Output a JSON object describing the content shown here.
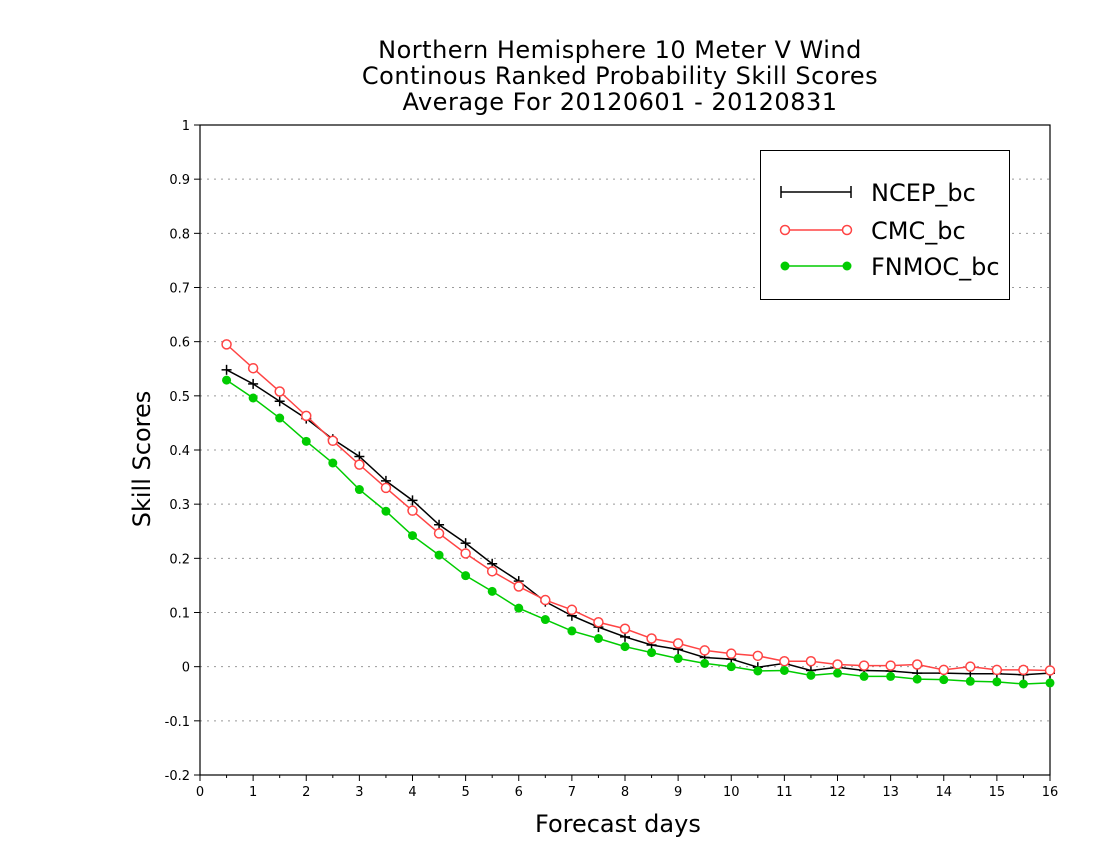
{
  "chart_data": {
    "type": "line",
    "title_lines": [
      "Northern Hemisphere 10 Meter V Wind",
      "Continous Ranked Probability Skill Scores",
      "Average For 20120601 - 20120831"
    ],
    "xlabel": "Forecast days",
    "ylabel": "Skill Scores",
    "xlim": [
      0,
      16
    ],
    "ylim": [
      -0.2,
      1
    ],
    "xticks": [
      "0",
      "1",
      "2",
      "3",
      "4",
      "5",
      "6",
      "7",
      "8",
      "9",
      "10",
      "11",
      "12",
      "13",
      "14",
      "15",
      "16"
    ],
    "yticks": [
      "-0.2",
      "-0.1",
      "0",
      "0.1",
      "0.2",
      "0.3",
      "0.4",
      "0.5",
      "0.6",
      "0.7",
      "0.8",
      "0.9",
      "1"
    ],
    "grid": "horizontal dotted",
    "legend_position": "top-right",
    "x": [
      0.5,
      1,
      1.5,
      2,
      2.5,
      3,
      3.5,
      4,
      4.5,
      5,
      5.5,
      6,
      6.5,
      7,
      7.5,
      8,
      8.5,
      9,
      9.5,
      10,
      10.5,
      11,
      11.5,
      12,
      12.5,
      13,
      13.5,
      14,
      14.5,
      15,
      15.5,
      16
    ],
    "series": [
      {
        "name": "NCEP_bc",
        "color": "#000000",
        "marker": "plus",
        "values": [
          0.548,
          0.522,
          0.49,
          0.458,
          0.42,
          0.388,
          0.343,
          0.307,
          0.262,
          0.228,
          0.19,
          0.158,
          0.12,
          0.094,
          0.073,
          0.055,
          0.04,
          0.032,
          0.017,
          0.014,
          -0.001,
          0.006,
          -0.007,
          -0.001,
          -0.007,
          -0.008,
          -0.012,
          -0.012,
          -0.013,
          -0.013,
          -0.015,
          -0.012
        ]
      },
      {
        "name": "CMC_bc",
        "color": "#ff4444",
        "marker": "open-circle",
        "values": [
          0.595,
          0.551,
          0.508,
          0.463,
          0.417,
          0.373,
          0.33,
          0.288,
          0.246,
          0.209,
          0.176,
          0.148,
          0.123,
          0.105,
          0.082,
          0.07,
          0.052,
          0.043,
          0.03,
          0.024,
          0.02,
          0.01,
          0.01,
          0.004,
          0.002,
          0.002,
          0.004,
          -0.006,
          0,
          -0.006,
          -0.006,
          -0.007
        ]
      },
      {
        "name": "FNMOC_bc",
        "color": "#00cc00",
        "marker": "filled-circle",
        "values": [
          0.529,
          0.496,
          0.459,
          0.416,
          0.376,
          0.327,
          0.287,
          0.242,
          0.206,
          0.168,
          0.139,
          0.108,
          0.087,
          0.066,
          0.052,
          0.037,
          0.026,
          0.015,
          0.006,
          0,
          -0.008,
          -0.007,
          -0.016,
          -0.012,
          -0.018,
          -0.018,
          -0.023,
          -0.024,
          -0.027,
          -0.028,
          -0.032,
          -0.03
        ]
      }
    ]
  }
}
